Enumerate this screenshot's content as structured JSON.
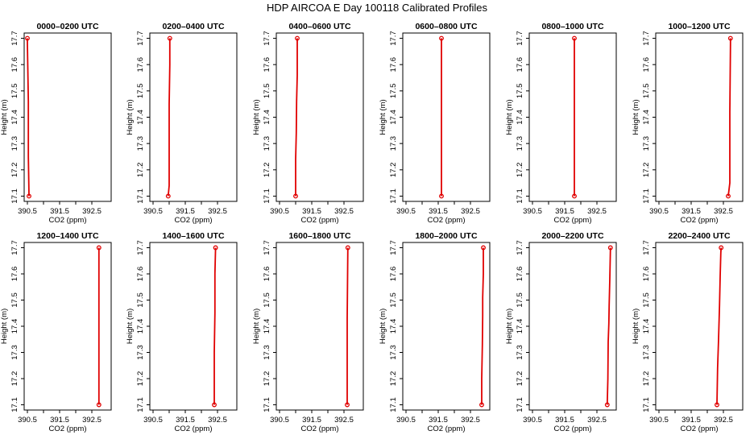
{
  "title": "HDP AIRCOA E  Day 100118  Calibrated Profiles",
  "colors": {
    "profile": "#e00000",
    "axis": "#000000"
  },
  "chart_data": {
    "type": "line",
    "xlabel": "CO2 (ppm)",
    "ylabel": "Height (m)",
    "xlim": [
      390.4,
      393.1
    ],
    "ylim": [
      17.08,
      17.72
    ],
    "xticks": [
      390.5,
      391,
      391.5,
      392,
      392.5
    ],
    "xtick_labels": [
      "390.5",
      "391.5",
      "392.5"
    ],
    "xtick_label_values": [
      390.5,
      391.5,
      392.5
    ],
    "yticks": [
      17.1,
      17.2,
      17.3,
      17.4,
      17.5,
      17.6,
      17.7
    ],
    "ytick_labels": [
      "17.1",
      "17.2",
      "17.3",
      "17.4",
      "17.5",
      "17.6",
      "17.7"
    ],
    "panels": [
      {
        "title": "0000–0200 UTC",
        "points": [
          [
            390.55,
            17.1
          ],
          [
            390.53,
            17.25
          ],
          [
            390.53,
            17.46
          ],
          [
            390.5,
            17.68
          ],
          [
            390.5,
            17.7
          ]
        ]
      },
      {
        "title": "0200–0400 UTC",
        "points": [
          [
            390.97,
            17.1
          ],
          [
            391.0,
            17.14
          ],
          [
            391.0,
            17.28
          ],
          [
            391.0,
            17.45
          ],
          [
            391.02,
            17.6
          ],
          [
            391.02,
            17.7
          ]
        ]
      },
      {
        "title": "0400–0600 UTC",
        "points": [
          [
            391.0,
            17.1
          ],
          [
            391.0,
            17.24
          ],
          [
            391.02,
            17.34
          ],
          [
            391.03,
            17.46
          ],
          [
            391.05,
            17.56
          ],
          [
            391.05,
            17.7
          ]
        ]
      },
      {
        "title": "0600–0800 UTC",
        "points": [
          [
            391.6,
            17.1
          ],
          [
            391.6,
            17.3
          ],
          [
            391.6,
            17.51
          ],
          [
            391.6,
            17.7
          ]
        ]
      },
      {
        "title": "0800–1000 UTC",
        "points": [
          [
            391.8,
            17.1
          ],
          [
            391.8,
            17.37
          ],
          [
            391.8,
            17.7
          ]
        ]
      },
      {
        "title": "1000–1200 UTC",
        "points": [
          [
            392.65,
            17.1
          ],
          [
            392.7,
            17.15
          ],
          [
            392.7,
            17.42
          ],
          [
            392.72,
            17.68
          ],
          [
            392.72,
            17.7
          ]
        ]
      },
      {
        "title": "1200–1400 UTC",
        "points": [
          [
            392.72,
            17.1
          ],
          [
            392.72,
            17.44
          ],
          [
            392.72,
            17.68
          ],
          [
            392.72,
            17.7
          ]
        ]
      },
      {
        "title": "1400–1600 UTC",
        "points": [
          [
            392.4,
            17.1
          ],
          [
            392.4,
            17.3
          ],
          [
            392.42,
            17.45
          ],
          [
            392.42,
            17.6
          ],
          [
            392.44,
            17.7
          ]
        ]
      },
      {
        "title": "1600–1800 UTC",
        "points": [
          [
            392.6,
            17.1
          ],
          [
            392.6,
            17.43
          ],
          [
            392.62,
            17.7
          ]
        ]
      },
      {
        "title": "1800–2000 UTC",
        "points": [
          [
            392.85,
            17.1
          ],
          [
            392.85,
            17.2
          ],
          [
            392.87,
            17.33
          ],
          [
            392.88,
            17.44
          ],
          [
            392.88,
            17.51
          ],
          [
            392.9,
            17.6
          ],
          [
            392.9,
            17.7
          ]
        ]
      },
      {
        "title": "2000–2200 UTC",
        "points": [
          [
            392.82,
            17.1
          ],
          [
            392.84,
            17.2
          ],
          [
            392.85,
            17.34
          ],
          [
            392.87,
            17.41
          ],
          [
            392.88,
            17.48
          ],
          [
            392.9,
            17.58
          ],
          [
            392.92,
            17.7
          ]
        ]
      },
      {
        "title": "2200–2400 UTC",
        "points": [
          [
            392.3,
            17.1
          ],
          [
            392.32,
            17.24
          ],
          [
            392.35,
            17.35
          ],
          [
            392.38,
            17.48
          ],
          [
            392.4,
            17.59
          ],
          [
            392.42,
            17.68
          ],
          [
            392.43,
            17.7
          ]
        ]
      }
    ]
  }
}
